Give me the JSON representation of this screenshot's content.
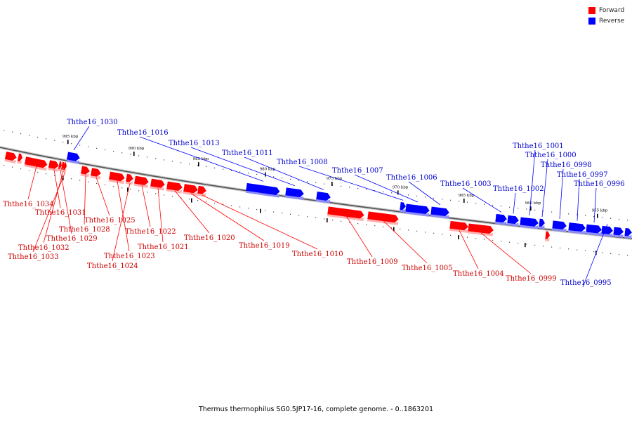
{
  "legend": {
    "forward_label": "Forward",
    "reverse_label": "Reverse",
    "forward_color": "#ff0000",
    "reverse_color": "#0000ff"
  },
  "caption": "Thermus thermophilus SG0.5JP17-16, complete genome. - 0..1863201",
  "ruler": {
    "ticks": [
      "995 kbp",
      "990 kbp",
      "985 kbp",
      "980 kbp",
      "975 kbp",
      "970 kbp",
      "965 kbp",
      "960 kbp",
      "955 kbp"
    ]
  },
  "genes": {
    "forward": [
      "Ththe16_1034",
      "Ththe16_1031",
      "Ththe16_1028",
      "Ththe16_1029",
      "Ththe16_1032",
      "Ththe16_1033",
      "Ththe16_1025",
      "Ththe16_1023",
      "Ththe16_1024",
      "Ththe16_1022",
      "Ththe16_1021",
      "Ththe16_1020",
      "Ththe16_1019",
      "Ththe16_1010",
      "Ththe16_1009",
      "Ththe16_1005",
      "Ththe16_1004",
      "Ththe16_0999"
    ],
    "reverse": [
      "Ththe16_1030",
      "Ththe16_1016",
      "Ththe16_1013",
      "Ththe16_1011",
      "Ththe16_1008",
      "Ththe16_1007",
      "Ththe16_1006",
      "Ththe16_1003",
      "Ththe16_1002",
      "Ththe16_1001",
      "Ththe16_1000",
      "Ththe16_0998",
      "Ththe16_0997",
      "Ththe16_0996",
      "Ththe16_0995"
    ]
  }
}
